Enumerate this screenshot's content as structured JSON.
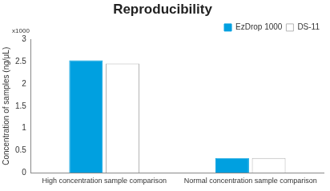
{
  "chart_data": {
    "type": "bar",
    "title": "Reproducibility",
    "y_label": "Concentration of samples (ng/μL)",
    "annotations": [
      "x1000"
    ],
    "categories": [
      "High concentration sample comparison",
      "Normal concentration sample comparison"
    ],
    "series": [
      {
        "name": "EzDrop 1000",
        "color": "#00a0e0",
        "values": [
          2.53,
          0.33
        ]
      },
      {
        "name": "DS-11",
        "color": "#ffffff",
        "values": [
          2.46,
          0.33
        ]
      }
    ],
    "ylim": [
      0,
      3
    ],
    "yticks": [
      0,
      0.5,
      1,
      1.5,
      2,
      2.5,
      3
    ],
    "grid": false,
    "legend": "upper right"
  }
}
